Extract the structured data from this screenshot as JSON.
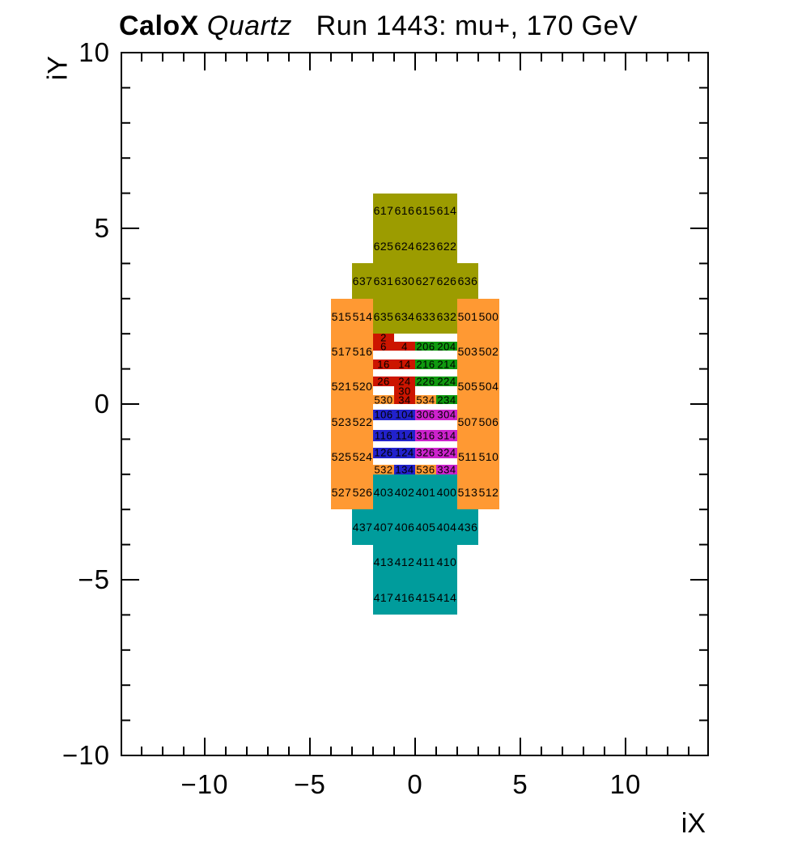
{
  "title": {
    "bold": "CaloX",
    "italic": " Quartz",
    "rest": "   Run 1443: mu+, 170 GeV"
  },
  "axes": {
    "x_label": "iX",
    "y_label": "iY",
    "x_ticks": [
      {
        "v": -10,
        "t": "−10"
      },
      {
        "v": -5,
        "t": "−5"
      },
      {
        "v": 0,
        "t": "0"
      },
      {
        "v": 5,
        "t": "5"
      },
      {
        "v": 10,
        "t": "10"
      }
    ],
    "y_ticks": [
      {
        "v": 10,
        "t": "10"
      },
      {
        "v": 5,
        "t": "5"
      },
      {
        "v": 0,
        "t": "0"
      },
      {
        "v": -5,
        "t": "−5"
      },
      {
        "v": -10,
        "t": "−10"
      }
    ]
  },
  "palette": {
    "orange": "#FF9933",
    "olive": "#9C9C00",
    "teal": "#009C9C",
    "red": "#CC1500",
    "green": "#0F990F",
    "blue": "#2222CC",
    "magenta": "#CC22CC"
  },
  "chart_data": {
    "type": "heatmap",
    "title": "CaloX Quartz  Run 1443: mu+, 170 GeV",
    "xlabel": "iX",
    "ylabel": "iY",
    "xlim": [
      -14,
      14
    ],
    "ylim": [
      -10,
      10
    ],
    "x_major_ticks": [
      -10,
      -5,
      0,
      5,
      10
    ],
    "y_major_ticks": [
      -10,
      -5,
      0,
      5,
      10
    ],
    "minor_tick_step": 1,
    "grid": false,
    "legend": "none",
    "cells": [
      {
        "id": "olive-top",
        "x": -2,
        "yt": 6,
        "w": 4,
        "h": 2,
        "c": "olive"
      },
      {
        "id": "olive-mid",
        "x": -3,
        "yt": 4,
        "w": 6,
        "h": 1,
        "c": "olive"
      },
      {
        "id": "olive-low",
        "x": -2,
        "yt": 3,
        "w": 4,
        "h": 1,
        "c": "olive"
      },
      {
        "id": "orange-left",
        "x": -4,
        "yt": 3,
        "w": 2,
        "h": 6,
        "c": "orange"
      },
      {
        "id": "orange-right",
        "x": 2,
        "yt": 3,
        "w": 2,
        "h": 6,
        "c": "orange"
      },
      {
        "id": "teal-top",
        "x": -2,
        "yt": -2,
        "w": 4,
        "h": 1,
        "c": "teal"
      },
      {
        "id": "teal-mid",
        "x": -3,
        "yt": -3,
        "w": 6,
        "h": 1,
        "c": "teal"
      },
      {
        "id": "teal-bottom",
        "x": -2,
        "yt": -4,
        "w": 4,
        "h": 2,
        "c": "teal"
      },
      {
        "id": "c2",
        "x": -2,
        "yt": 2,
        "w": 1,
        "h": 0.23,
        "c": "red"
      },
      {
        "id": "c6-4",
        "x": -2,
        "yt": 1.77,
        "w": 2,
        "h": 0.25,
        "c": "red"
      },
      {
        "id": "c206-204",
        "x": 0,
        "yt": 1.77,
        "w": 2,
        "h": 0.25,
        "c": "green"
      },
      {
        "id": "c16-14",
        "x": -2,
        "yt": 1.27,
        "w": 2,
        "h": 0.28,
        "c": "red"
      },
      {
        "id": "c216-214",
        "x": 0,
        "yt": 1.27,
        "w": 2,
        "h": 0.28,
        "c": "green"
      },
      {
        "id": "c26-24",
        "x": -2,
        "yt": 0.78,
        "w": 2,
        "h": 0.27,
        "c": "red"
      },
      {
        "id": "c226-224",
        "x": 0,
        "yt": 0.78,
        "w": 2,
        "h": 0.27,
        "c": "green"
      },
      {
        "id": "c30",
        "x": -1,
        "yt": 0.51,
        "w": 1,
        "h": 0.26,
        "c": "red"
      },
      {
        "id": "c530",
        "x": -2,
        "yt": 0.25,
        "w": 1,
        "h": 0.25,
        "c": "orange"
      },
      {
        "id": "c34",
        "x": -1,
        "yt": 0.25,
        "w": 1,
        "h": 0.25,
        "c": "red"
      },
      {
        "id": "c534",
        "x": 0,
        "yt": 0.25,
        "w": 1,
        "h": 0.25,
        "c": "orange"
      },
      {
        "id": "c234",
        "x": 1,
        "yt": 0.25,
        "w": 1,
        "h": 0.25,
        "c": "green"
      },
      {
        "id": "c106-104",
        "x": -2,
        "yt": -0.16,
        "w": 2,
        "h": 0.3,
        "c": "blue"
      },
      {
        "id": "c306-304",
        "x": 0,
        "yt": -0.16,
        "w": 2,
        "h": 0.3,
        "c": "magenta"
      },
      {
        "id": "c116-114",
        "x": -2,
        "yt": -0.74,
        "w": 2,
        "h": 0.32,
        "c": "blue"
      },
      {
        "id": "c316-314",
        "x": 0,
        "yt": -0.74,
        "w": 2,
        "h": 0.32,
        "c": "magenta"
      },
      {
        "id": "c126-124",
        "x": -2,
        "yt": -1.24,
        "w": 2,
        "h": 0.3,
        "c": "blue"
      },
      {
        "id": "c326-324",
        "x": 0,
        "yt": -1.24,
        "w": 2,
        "h": 0.3,
        "c": "magenta"
      },
      {
        "id": "c532",
        "x": -2,
        "yt": -1.73,
        "w": 1,
        "h": 0.27,
        "c": "orange"
      },
      {
        "id": "c134",
        "x": -1,
        "yt": -1.73,
        "w": 1,
        "h": 0.27,
        "c": "blue"
      },
      {
        "id": "c536",
        "x": 0,
        "yt": -1.73,
        "w": 1,
        "h": 0.27,
        "c": "orange"
      },
      {
        "id": "c334",
        "x": 1,
        "yt": -1.73,
        "w": 1,
        "h": 0.27,
        "c": "magenta"
      }
    ],
    "channel_labels": [
      {
        "t": "617",
        "x": -1.5,
        "y": 5.5
      },
      {
        "t": "616",
        "x": -0.5,
        "y": 5.5
      },
      {
        "t": "615",
        "x": 0.5,
        "y": 5.5
      },
      {
        "t": "614",
        "x": 1.5,
        "y": 5.5
      },
      {
        "t": "625",
        "x": -1.5,
        "y": 4.5
      },
      {
        "t": "624",
        "x": -0.5,
        "y": 4.5
      },
      {
        "t": "623",
        "x": 0.5,
        "y": 4.5
      },
      {
        "t": "622",
        "x": 1.5,
        "y": 4.5
      },
      {
        "t": "637",
        "x": -2.5,
        "y": 3.5
      },
      {
        "t": "631",
        "x": -1.5,
        "y": 3.5
      },
      {
        "t": "630",
        "x": -0.5,
        "y": 3.5
      },
      {
        "t": "627",
        "x": 0.5,
        "y": 3.5
      },
      {
        "t": "626",
        "x": 1.5,
        "y": 3.5
      },
      {
        "t": "636",
        "x": 2.5,
        "y": 3.5
      },
      {
        "t": "515",
        "x": -3.5,
        "y": 2.5
      },
      {
        "t": "514",
        "x": -2.5,
        "y": 2.5
      },
      {
        "t": "635",
        "x": -1.5,
        "y": 2.5
      },
      {
        "t": "634",
        "x": -0.5,
        "y": 2.5
      },
      {
        "t": "633",
        "x": 0.5,
        "y": 2.5
      },
      {
        "t": "632",
        "x": 1.5,
        "y": 2.5
      },
      {
        "t": "501",
        "x": 2.5,
        "y": 2.5
      },
      {
        "t": "500",
        "x": 3.5,
        "y": 2.5
      },
      {
        "t": "517",
        "x": -3.5,
        "y": 1.5
      },
      {
        "t": "516",
        "x": -2.5,
        "y": 1.5
      },
      {
        "t": "503",
        "x": 2.5,
        "y": 1.5
      },
      {
        "t": "502",
        "x": 3.5,
        "y": 1.5
      },
      {
        "t": "521",
        "x": -3.5,
        "y": 0.5
      },
      {
        "t": "520",
        "x": -2.5,
        "y": 0.5
      },
      {
        "t": "505",
        "x": 2.5,
        "y": 0.5
      },
      {
        "t": "504",
        "x": 3.5,
        "y": 0.5
      },
      {
        "t": "523",
        "x": -3.5,
        "y": -0.5
      },
      {
        "t": "522",
        "x": -2.5,
        "y": -0.5
      },
      {
        "t": "507",
        "x": 2.5,
        "y": -0.5
      },
      {
        "t": "506",
        "x": 3.5,
        "y": -0.5
      },
      {
        "t": "525",
        "x": -3.5,
        "y": -1.5
      },
      {
        "t": "524",
        "x": -2.5,
        "y": -1.5
      },
      {
        "t": "511",
        "x": 2.5,
        "y": -1.5
      },
      {
        "t": "510",
        "x": 3.5,
        "y": -1.5
      },
      {
        "t": "527",
        "x": -3.5,
        "y": -2.5
      },
      {
        "t": "526",
        "x": -2.5,
        "y": -2.5
      },
      {
        "t": "403",
        "x": -1.5,
        "y": -2.5
      },
      {
        "t": "402",
        "x": -0.5,
        "y": -2.5
      },
      {
        "t": "401",
        "x": 0.5,
        "y": -2.5
      },
      {
        "t": "400",
        "x": 1.5,
        "y": -2.5
      },
      {
        "t": "513",
        "x": 2.5,
        "y": -2.5
      },
      {
        "t": "512",
        "x": 3.5,
        "y": -2.5
      },
      {
        "t": "437",
        "x": -2.5,
        "y": -3.5
      },
      {
        "t": "407",
        "x": -1.5,
        "y": -3.5
      },
      {
        "t": "406",
        "x": -0.5,
        "y": -3.5
      },
      {
        "t": "405",
        "x": 0.5,
        "y": -3.5
      },
      {
        "t": "404",
        "x": 1.5,
        "y": -3.5
      },
      {
        "t": "436",
        "x": 2.5,
        "y": -3.5
      },
      {
        "t": "413",
        "x": -1.5,
        "y": -4.5
      },
      {
        "t": "412",
        "x": -0.5,
        "y": -4.5
      },
      {
        "t": "411",
        "x": 0.5,
        "y": -4.5
      },
      {
        "t": "410",
        "x": 1.5,
        "y": -4.5
      },
      {
        "t": "417",
        "x": -1.5,
        "y": -5.5
      },
      {
        "t": "416",
        "x": -0.5,
        "y": -5.5
      },
      {
        "t": "415",
        "x": 0.5,
        "y": -5.5
      },
      {
        "t": "414",
        "x": 1.5,
        "y": -5.5
      },
      {
        "t": "2",
        "x": -1.5,
        "y": 1.885,
        "small": 1
      },
      {
        "t": "6",
        "x": -1.5,
        "y": 1.645,
        "small": 1
      },
      {
        "t": "4",
        "x": -0.5,
        "y": 1.645,
        "small": 1
      },
      {
        "t": "206",
        "x": 0.5,
        "y": 1.645,
        "small": 1
      },
      {
        "t": "204",
        "x": 1.5,
        "y": 1.645,
        "small": 1
      },
      {
        "t": "16",
        "x": -1.5,
        "y": 1.13,
        "small": 1
      },
      {
        "t": "14",
        "x": -0.5,
        "y": 1.13,
        "small": 1
      },
      {
        "t": "216",
        "x": 0.5,
        "y": 1.13,
        "small": 1
      },
      {
        "t": "214",
        "x": 1.5,
        "y": 1.13,
        "small": 1
      },
      {
        "t": "26",
        "x": -1.5,
        "y": 0.645,
        "small": 1
      },
      {
        "t": "24",
        "x": -0.5,
        "y": 0.645,
        "small": 1
      },
      {
        "t": "226",
        "x": 0.5,
        "y": 0.645,
        "small": 1
      },
      {
        "t": "224",
        "x": 1.5,
        "y": 0.645,
        "small": 1
      },
      {
        "t": "30",
        "x": -0.5,
        "y": 0.38,
        "small": 1
      },
      {
        "t": "530",
        "x": -1.5,
        "y": 0.125,
        "small": 1
      },
      {
        "t": "34",
        "x": -0.5,
        "y": 0.125,
        "small": 1
      },
      {
        "t": "534",
        "x": 0.5,
        "y": 0.125,
        "small": 1
      },
      {
        "t": "234",
        "x": 1.5,
        "y": 0.125,
        "small": 1
      },
      {
        "t": "106",
        "x": -1.5,
        "y": -0.31,
        "small": 1
      },
      {
        "t": "104",
        "x": -0.5,
        "y": -0.31,
        "small": 1
      },
      {
        "t": "306",
        "x": 0.5,
        "y": -0.31,
        "small": 1
      },
      {
        "t": "304",
        "x": 1.5,
        "y": -0.31,
        "small": 1
      },
      {
        "t": "116",
        "x": -1.5,
        "y": -0.9,
        "small": 1
      },
      {
        "t": "114",
        "x": -0.5,
        "y": -0.9,
        "small": 1
      },
      {
        "t": "316",
        "x": 0.5,
        "y": -0.9,
        "small": 1
      },
      {
        "t": "314",
        "x": 1.5,
        "y": -0.9,
        "small": 1
      },
      {
        "t": "126",
        "x": -1.5,
        "y": -1.39,
        "small": 1
      },
      {
        "t": "124",
        "x": -0.5,
        "y": -1.39,
        "small": 1
      },
      {
        "t": "326",
        "x": 0.5,
        "y": -1.39,
        "small": 1
      },
      {
        "t": "324",
        "x": 1.5,
        "y": -1.39,
        "small": 1
      },
      {
        "t": "532",
        "x": -1.5,
        "y": -1.865,
        "small": 1
      },
      {
        "t": "134",
        "x": -0.5,
        "y": -1.865,
        "small": 1
      },
      {
        "t": "536",
        "x": 0.5,
        "y": -1.865,
        "small": 1
      },
      {
        "t": "334",
        "x": 1.5,
        "y": -1.865,
        "small": 1
      }
    ]
  }
}
